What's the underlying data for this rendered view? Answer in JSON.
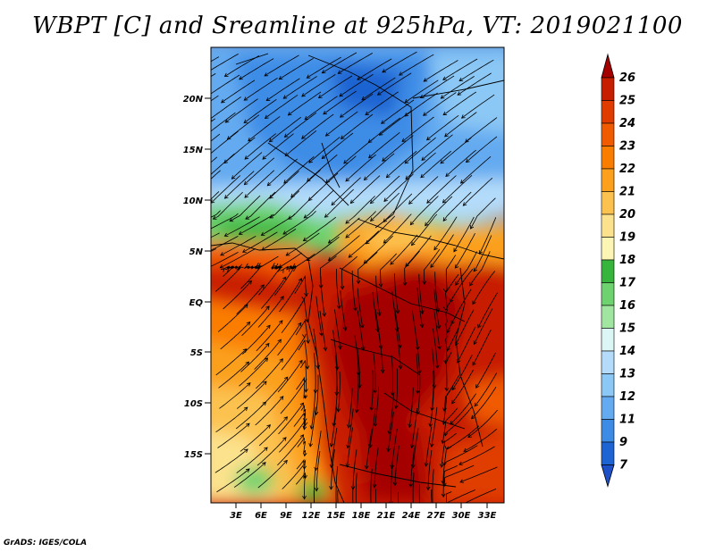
{
  "title": "WBPT [C] and Sreamline at 925hPa, VT: 2019021100",
  "credit": "GrADS: IGES/COLA",
  "map": {
    "lat_labels": [
      "20N",
      "15N",
      "10N",
      "5N",
      "EQ",
      "5S",
      "10S",
      "15S"
    ],
    "lon_labels": [
      "3E",
      "6E",
      "9E",
      "12E",
      "15E",
      "18E",
      "21E",
      "24E",
      "27E",
      "30E",
      "33E"
    ]
  },
  "colorbar": {
    "labels": [
      "26",
      "25",
      "24",
      "23",
      "22",
      "21",
      "20",
      "19",
      "18",
      "17",
      "16",
      "15",
      "14",
      "13",
      "12",
      "11",
      "9",
      "7"
    ],
    "colors": [
      "#a50000",
      "#c81e00",
      "#e03c00",
      "#f05a00",
      "#fa7d00",
      "#fca01e",
      "#fcc250",
      "#fce28c",
      "#fdf5b4",
      "#37b43c",
      "#6ed26e",
      "#a0e6a0",
      "#dcf5f5",
      "#b4dcfa",
      "#8cc8f5",
      "#64aaf0",
      "#3c8ce6",
      "#1e64d2",
      "#1e50c8"
    ]
  }
}
